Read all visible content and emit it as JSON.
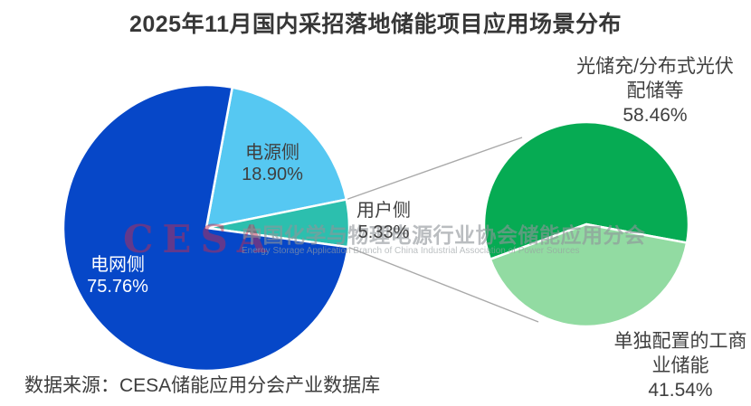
{
  "title": "2025年11月国内采招落地储能项目应用场景分布",
  "source_note": "数据来源：CESA储能应用分会产业数据库",
  "watermark": {
    "logo_text": "CESA",
    "cn": "中国化学与物理电源行业协会储能应用分会",
    "en": "Energy Storage Application Branch of China Industrial Association of Power Sources"
  },
  "chart_data": {
    "type": "pie",
    "variant": "pie-of-pie",
    "title": "2025年11月国内采招落地储能项目应用场景分布",
    "legend": "none",
    "label_color": "#3f3f3f",
    "connector_color": "#a9a9a9",
    "main_pie": {
      "start_angle": 10.5,
      "slices": [
        {
          "name": "power-side",
          "label": "电源侧",
          "value": 18.9,
          "value_text": "18.90%",
          "color": "#56c8f2"
        },
        {
          "name": "user-side",
          "label": "用户侧",
          "value": 5.33,
          "value_text": "5.33%",
          "color": "#2cbfae"
        },
        {
          "name": "grid-side",
          "label": "电网侧",
          "value": 75.76,
          "value_text": "75.76%",
          "color": "#0647c8"
        }
      ]
    },
    "secondary_pie": {
      "start_angle": 250,
      "breakout_of": "用户侧",
      "slices": [
        {
          "name": "solar-storage-pv",
          "label": "光储充/分布式光伏配储等",
          "label_lines": [
            "光储充/分布式光伏",
            "配储等"
          ],
          "value": 58.46,
          "value_text": "58.46%",
          "color": "#06ab53"
        },
        {
          "name": "standalone-ci-storage",
          "label": "单独配置的工商业储能",
          "label_lines": [
            "单独配置的工商",
            "业储能"
          ],
          "value": 41.54,
          "value_text": "41.54%",
          "color": "#92dba2"
        }
      ]
    }
  }
}
